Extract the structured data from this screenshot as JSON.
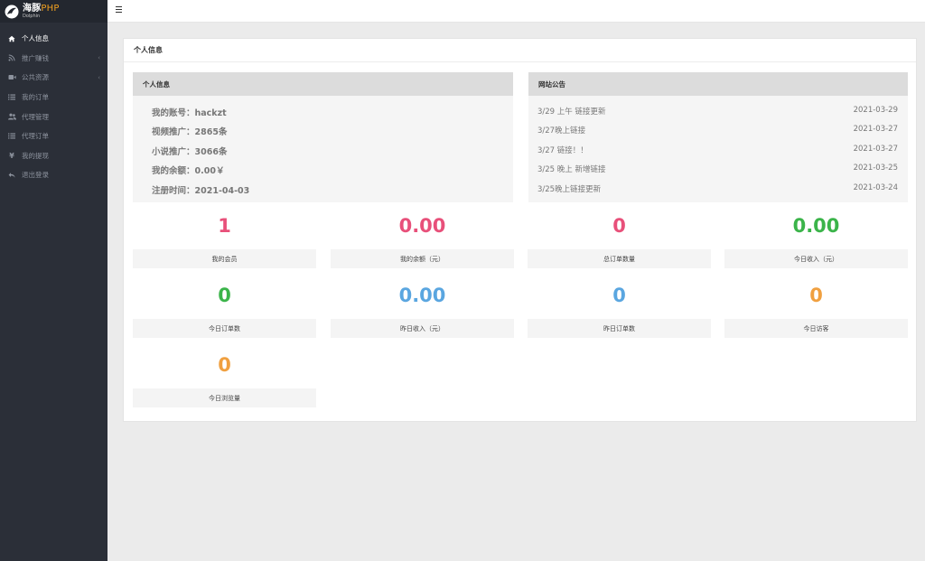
{
  "app": {
    "logo_cn": "海豚",
    "logo_php": "PHP",
    "logo_sub": "Dolphin"
  },
  "sidebar": {
    "items": [
      {
        "label": "个人信息",
        "icon": "home-icon",
        "active": true,
        "has_arrow": false
      },
      {
        "label": "推广赚钱",
        "icon": "rss-icon",
        "active": false,
        "has_arrow": true
      },
      {
        "label": "公共资源",
        "icon": "video-icon",
        "active": false,
        "has_arrow": true
      },
      {
        "label": "我的订单",
        "icon": "list-icon",
        "active": false,
        "has_arrow": false
      },
      {
        "label": "代理管理",
        "icon": "users-icon",
        "active": false,
        "has_arrow": false
      },
      {
        "label": "代理订单",
        "icon": "list-icon",
        "active": false,
        "has_arrow": false
      },
      {
        "label": "我的提现",
        "icon": "yen-icon",
        "active": false,
        "has_arrow": false
      },
      {
        "label": "退出登录",
        "icon": "logout-icon",
        "active": false,
        "has_arrow": false
      }
    ]
  },
  "card": {
    "title": "个人信息"
  },
  "profile": {
    "title": "个人信息",
    "rows": [
      "我的账号：hackzt",
      "视频推广：2865条",
      "小说推广：3066条",
      "我的余额：0.00￥",
      "注册时间：2021-04-03"
    ]
  },
  "notices": {
    "title": "网站公告",
    "items": [
      {
        "text": "3/29 上午 链接更新",
        "date": "2021-03-29"
      },
      {
        "text": "3/27晚上链接",
        "date": "2021-03-27"
      },
      {
        "text": "3/27 链接！！",
        "date": "2021-03-27"
      },
      {
        "text": "3/25 晚上 新增链接",
        "date": "2021-03-25"
      },
      {
        "text": "3/25晚上链接更新",
        "date": "2021-03-24"
      }
    ]
  },
  "stats": [
    {
      "value": "1",
      "label": "我的会员",
      "color": "#e8507a"
    },
    {
      "value": "0.00",
      "label": "我的余额（元）",
      "color": "#e8507a"
    },
    {
      "value": "0",
      "label": "总订单数量",
      "color": "#e8507a"
    },
    {
      "value": "0.00",
      "label": "今日收入（元）",
      "color": "#3bb44a"
    },
    {
      "value": "0",
      "label": "今日订单数",
      "color": "#3bb44a"
    },
    {
      "value": "0.00",
      "label": "昨日收入（元）",
      "color": "#5aa6e0"
    },
    {
      "value": "0",
      "label": "昨日订单数",
      "color": "#5aa6e0"
    },
    {
      "value": "0",
      "label": "今日访客",
      "color": "#f0a040"
    },
    {
      "value": "0",
      "label": "今日浏览量",
      "color": "#f0a040"
    }
  ]
}
